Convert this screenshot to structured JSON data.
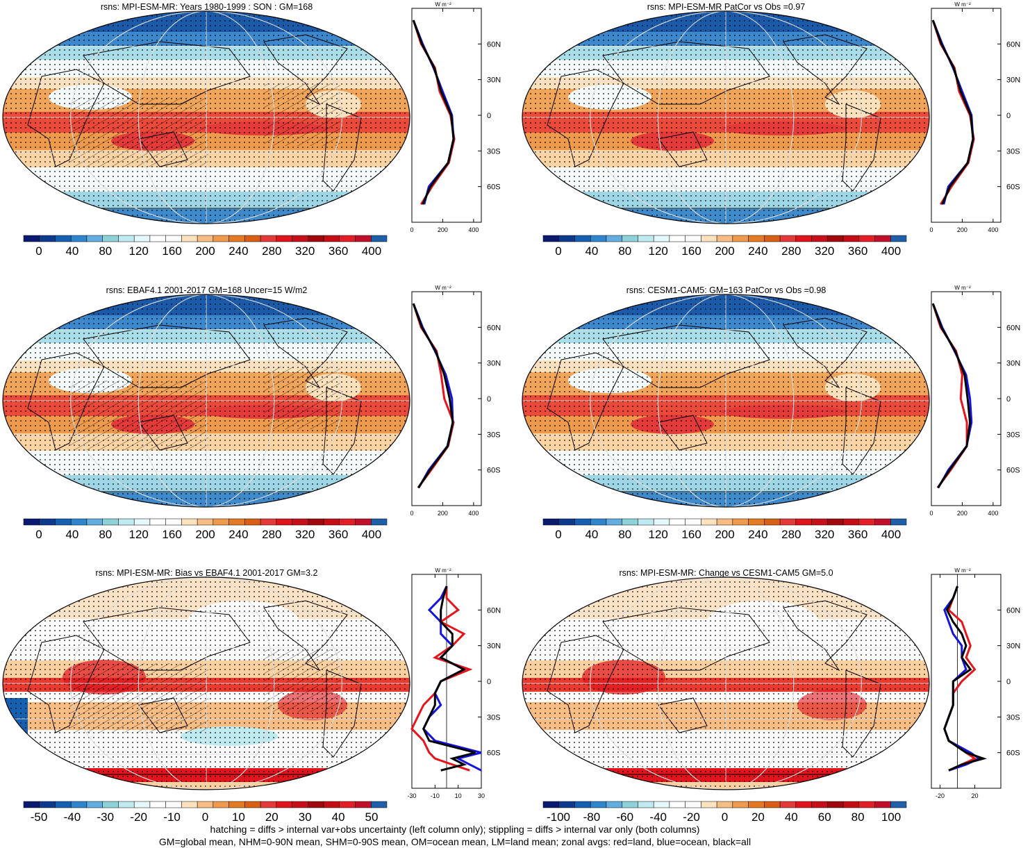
{
  "colors": {
    "line_land": "#e8141c",
    "line_ocean": "#1414e0",
    "line_all": "#000000",
    "abs_palette": [
      "#0a1a70",
      "#0d3a8c",
      "#1560b0",
      "#2f86cc",
      "#63aee0",
      "#8fd1d8",
      "#bfeaf0",
      "#e6f8fb",
      "#ffffff",
      "#fbfbfb",
      "#fde2c0",
      "#f7bd84",
      "#ef9a4c",
      "#e47a24",
      "#d85f14",
      "#e53a3a",
      "#e0141c",
      "#c8101a",
      "#a0080e",
      "#c40d14",
      "#e41e26",
      "#c2102a",
      "#2060a8"
    ],
    "diff_palette": [
      "#0a1a70",
      "#0d3a8c",
      "#1560b0",
      "#2f86cc",
      "#63aee0",
      "#8fd1d8",
      "#bfeaf0",
      "#e6f8fb",
      "#ffffff",
      "#fbfbfb",
      "#fde2c0",
      "#f7bd84",
      "#ef9a4c",
      "#e47a24",
      "#d85f14",
      "#e53a3a",
      "#e0141c",
      "#c8101a",
      "#a0080e",
      "#c40d14",
      "#e41e26",
      "#c2102a",
      "#2060a8"
    ]
  },
  "panels": [
    {
      "id": "p1",
      "title": "rsns: MPI-ESM-MR: Years 1980-1999 : SON : GM=168",
      "colorbar_labels": [
        "0",
        "40",
        "80",
        "120",
        "160",
        "200",
        "240",
        "280",
        "320",
        "360",
        "400"
      ],
      "kind": "abs",
      "hatched": true,
      "zonal": {
        "xticks": [
          "0",
          "200",
          "400"
        ],
        "xlim": [
          0,
          450
        ],
        "yticks": [
          "60N",
          "30N",
          "0",
          "30S",
          "60S"
        ],
        "units": "W m⁻²"
      }
    },
    {
      "id": "p2",
      "title": "rsns: MPI-ESM-MR PatCor vs Obs =0.97",
      "colorbar_labels": [
        "0",
        "40",
        "80",
        "120",
        "160",
        "200",
        "240",
        "280",
        "320",
        "360",
        "400"
      ],
      "kind": "abs",
      "hatched": false,
      "zonal": {
        "xticks": [
          "0",
          "200",
          "400"
        ],
        "xlim": [
          0,
          450
        ],
        "yticks": [
          "60N",
          "30N",
          "0",
          "30S",
          "60S"
        ],
        "units": "W m⁻²"
      }
    },
    {
      "id": "p3",
      "title": "rsns: EBAF4.1 2001-2017 GM=168 Uncer=15 W/m2",
      "colorbar_labels": [
        "0",
        "40",
        "80",
        "120",
        "160",
        "200",
        "240",
        "280",
        "320",
        "360",
        "400"
      ],
      "kind": "abs",
      "hatched": true,
      "zonal": {
        "xticks": [
          "0",
          "200",
          "400"
        ],
        "xlim": [
          0,
          450
        ],
        "yticks": [
          "60N",
          "30N",
          "0",
          "30S",
          "60S"
        ],
        "units": "W m⁻²"
      }
    },
    {
      "id": "p4",
      "title": "rsns: CESM1-CAM5: GM=163 PatCor vs Obs =0.98",
      "colorbar_labels": [
        "0",
        "40",
        "80",
        "120",
        "160",
        "200",
        "240",
        "280",
        "320",
        "360",
        "400"
      ],
      "kind": "abs",
      "hatched": false,
      "zonal": {
        "xticks": [
          "0",
          "200",
          "400"
        ],
        "xlim": [
          0,
          450
        ],
        "yticks": [
          "60N",
          "30N",
          "0",
          "30S",
          "60S"
        ],
        "units": "W m⁻²"
      }
    },
    {
      "id": "p5",
      "title": "rsns: MPI-ESM-MR: Bias vs EBAF4.1 2001-2017  GM=3.2",
      "colorbar_labels": [
        "-50",
        "-40",
        "-30",
        "-20",
        "-10",
        "0",
        "10",
        "20",
        "30",
        "40",
        "50"
      ],
      "kind": "diff",
      "hatched": true,
      "zonal": {
        "xticks": [
          "-30",
          "-10",
          "10",
          "30"
        ],
        "xlim": [
          -30,
          30
        ],
        "yticks": [
          "60N",
          "30N",
          "0",
          "30S",
          "60S"
        ],
        "units": "W m⁻²"
      }
    },
    {
      "id": "p6",
      "title": "rsns: MPI-ESM-MR: Change vs CESM1-CAM5 GM=5.0",
      "colorbar_labels": [
        "-100",
        "-80",
        "-60",
        "-40",
        "-20",
        "0",
        "20",
        "40",
        "60",
        "80",
        "100"
      ],
      "kind": "diff",
      "hatched": false,
      "zonal": {
        "xticks": [
          "-20",
          "20"
        ],
        "xlim": [
          -30,
          50
        ],
        "yticks": [
          "60N",
          "30N",
          "0",
          "30S",
          "60S"
        ],
        "units": "W m⁻²"
      }
    }
  ],
  "chart_data": [
    {
      "type": "line",
      "panel": "p1",
      "x_label": "W m-2",
      "y": [
        80,
        60,
        40,
        20,
        0,
        -20,
        -40,
        -60,
        -75
      ],
      "series": [
        {
          "values": [
            10,
            60,
            150,
            180,
            250,
            275,
            240,
            130,
            60
          ]
        },
        {
          "values": [
            10,
            70,
            140,
            200,
            260,
            270,
            235,
            110,
            80
          ]
        },
        {
          "values": [
            10,
            65,
            145,
            190,
            255,
            270,
            235,
            120,
            70
          ]
        }
      ]
    },
    {
      "type": "line",
      "panel": "p2",
      "x_label": "W m-2",
      "y": [
        80,
        60,
        40,
        20,
        0,
        -20,
        -40,
        -60,
        -75
      ],
      "series": [
        {
          "values": [
            10,
            60,
            150,
            180,
            250,
            275,
            240,
            130,
            60
          ]
        },
        {
          "values": [
            10,
            70,
            140,
            200,
            260,
            270,
            235,
            110,
            80
          ]
        },
        {
          "values": [
            10,
            65,
            145,
            190,
            255,
            270,
            235,
            120,
            70
          ]
        }
      ]
    },
    {
      "type": "line",
      "panel": "p3",
      "x_label": "W m-2",
      "y": [
        80,
        60,
        40,
        20,
        0,
        -20,
        -40,
        -60,
        -75
      ],
      "series": [
        {
          "values": [
            10,
            60,
            160,
            190,
            210,
            270,
            235,
            125,
            40
          ]
        },
        {
          "values": [
            10,
            70,
            150,
            220,
            260,
            265,
            230,
            110,
            45
          ]
        },
        {
          "values": [
            10,
            65,
            155,
            210,
            245,
            265,
            232,
            118,
            42
          ]
        }
      ]
    },
    {
      "type": "line",
      "panel": "p4",
      "x_label": "W m-2",
      "y": [
        80,
        60,
        40,
        20,
        0,
        -20,
        -40,
        -60,
        -75
      ],
      "series": [
        {
          "values": [
            10,
            60,
            160,
            200,
            190,
            230,
            230,
            125,
            40
          ]
        },
        {
          "values": [
            10,
            70,
            150,
            225,
            250,
            260,
            228,
            110,
            45
          ]
        },
        {
          "values": [
            10,
            65,
            155,
            215,
            235,
            250,
            229,
            118,
            42
          ]
        }
      ]
    },
    {
      "type": "line",
      "panel": "p5",
      "x_label": "W m-2",
      "y": [
        80,
        70,
        60,
        50,
        40,
        30,
        20,
        10,
        0,
        -10,
        -20,
        -30,
        -40,
        -50,
        -60,
        -65,
        -70,
        -75
      ],
      "series": [
        {
          "values": [
            0,
            0,
            10,
            -5,
            15,
            5,
            -10,
            20,
            -5,
            -10,
            -20,
            -25,
            -30,
            -20,
            -15,
            -10,
            5,
            20
          ]
        },
        {
          "values": [
            0,
            -5,
            -15,
            -5,
            -5,
            5,
            -5,
            15,
            -5,
            -10,
            -5,
            -15,
            -20,
            -10,
            30,
            10,
            20,
            30
          ]
        },
        {
          "values": [
            0,
            -3,
            -5,
            -5,
            5,
            5,
            -5,
            15,
            -5,
            -10,
            -10,
            -15,
            -20,
            -15,
            25,
            5,
            15,
            -5
          ]
        }
      ]
    },
    {
      "type": "line",
      "panel": "p6",
      "x_label": "W m-2",
      "y": [
        80,
        70,
        60,
        50,
        40,
        30,
        20,
        10,
        0,
        -10,
        -20,
        -30,
        -40,
        -50,
        -60,
        -65,
        -70,
        -75
      ],
      "series": [
        {
          "values": [
            0,
            -5,
            -10,
            5,
            10,
            15,
            10,
            20,
            5,
            -5,
            -5,
            -10,
            -15,
            -10,
            10,
            20,
            5,
            -10
          ]
        },
        {
          "values": [
            0,
            -5,
            -15,
            -10,
            -5,
            5,
            5,
            10,
            -5,
            -5,
            -5,
            -10,
            -15,
            -10,
            15,
            25,
            10,
            -10
          ]
        },
        {
          "values": [
            0,
            -5,
            -12,
            -5,
            5,
            10,
            5,
            15,
            -5,
            -5,
            -5,
            -10,
            -15,
            -10,
            10,
            30,
            5,
            -10
          ]
        }
      ]
    }
  ],
  "footer": {
    "line1": "hatching = diffs > internal var+obs uncertainty (left column only); stippling = diffs > internal var only (both columns)",
    "line2": "GM=global mean, NHM=0-90N mean, SHM=0-90S mean, OM=ocean mean, LM=land mean; zonal avgs: red=land, blue=ocean, black=all"
  }
}
